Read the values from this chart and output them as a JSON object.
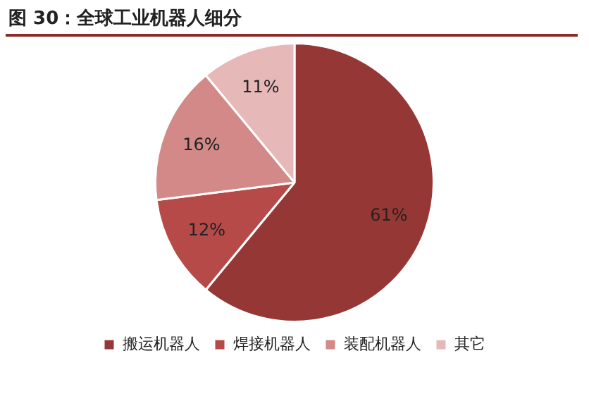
{
  "chart_data": {
    "type": "pie",
    "title": "图 30：全球工业机器人细分",
    "categories": [
      "搬运机器人",
      "焊接机器人",
      "装配机器人",
      "其它"
    ],
    "values": [
      61,
      12,
      16,
      11
    ],
    "colors": [
      "#953735",
      "#b64a48",
      "#d28987",
      "#e6b9b8"
    ],
    "value_labels": [
      "61%",
      "12%",
      "16%",
      "11%"
    ],
    "legend": "bottom"
  }
}
